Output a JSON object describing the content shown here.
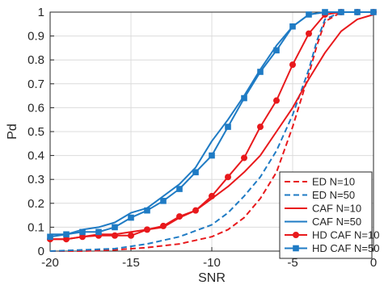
{
  "chart_data": {
    "type": "line",
    "title": "",
    "xlabel": "SNR",
    "ylabel": "Pd",
    "xlim": [
      -20,
      0
    ],
    "ylim": [
      0,
      1
    ],
    "xticks": [
      -20,
      -15,
      -10,
      -5,
      0
    ],
    "yticks": [
      0,
      0.1,
      0.2,
      0.3,
      0.4,
      0.5,
      0.6,
      0.7,
      0.8,
      0.9,
      1
    ],
    "grid": true,
    "legend_position": "bottom-right",
    "series": [
      {
        "name": "ED  N=10",
        "color": "#e8191c",
        "dash": "dashed",
        "marker": "none",
        "x": [
          -20,
          -18,
          -16,
          -14,
          -12,
          -10,
          -9,
          -8,
          -7,
          -6,
          -5,
          -4,
          -3.5,
          -3,
          -2,
          0
        ],
        "y": [
          0.0,
          0.0,
          0.005,
          0.015,
          0.03,
          0.06,
          0.09,
          0.14,
          0.22,
          0.33,
          0.52,
          0.74,
          0.86,
          0.96,
          1.0,
          1.0
        ]
      },
      {
        "name": "ED  N=50",
        "color": "#1f7bc4",
        "dash": "dashed",
        "marker": "none",
        "x": [
          -20,
          -18,
          -16,
          -14,
          -12,
          -10,
          -9,
          -8,
          -7,
          -6,
          -5,
          -4,
          -3.5,
          -3,
          -2,
          0
        ],
        "y": [
          0.0,
          0.005,
          0.01,
          0.03,
          0.06,
          0.11,
          0.16,
          0.23,
          0.31,
          0.42,
          0.57,
          0.76,
          0.88,
          0.97,
          1.0,
          1.0
        ]
      },
      {
        "name": "CAF  N=10",
        "color": "#e8191c",
        "dash": "solid",
        "marker": "none",
        "x": [
          -20,
          -19,
          -18,
          -17,
          -16,
          -15,
          -14,
          -13,
          -12,
          -11,
          -10,
          -9,
          -8,
          -7,
          -6,
          -5,
          -4,
          -3,
          -2,
          -1,
          0
        ],
        "y": [
          0.05,
          0.05,
          0.06,
          0.07,
          0.07,
          0.08,
          0.09,
          0.1,
          0.14,
          0.17,
          0.22,
          0.27,
          0.33,
          0.4,
          0.5,
          0.6,
          0.72,
          0.83,
          0.92,
          0.97,
          0.99
        ]
      },
      {
        "name": "CAF  N=50",
        "color": "#1f7bc4",
        "dash": "solid",
        "marker": "none",
        "x": [
          -20,
          -19,
          -18,
          -17,
          -16,
          -15,
          -14,
          -13,
          -12,
          -11,
          -10,
          -9,
          -8,
          -7,
          -6,
          -5,
          -4,
          -3,
          -2,
          -1,
          0
        ],
        "y": [
          0.07,
          0.07,
          0.09,
          0.1,
          0.12,
          0.16,
          0.18,
          0.23,
          0.28,
          0.35,
          0.46,
          0.55,
          0.65,
          0.76,
          0.86,
          0.94,
          0.99,
          1.0,
          1.0,
          1.0,
          1.0
        ]
      },
      {
        "name": "HD CAF  N=10",
        "color": "#e8191c",
        "dash": "solid",
        "marker": "circle",
        "x": [
          -20,
          -19,
          -18,
          -17,
          -16,
          -15,
          -14,
          -13,
          -12,
          -11,
          -10,
          -9,
          -8,
          -7,
          -6,
          -5,
          -4,
          -3,
          -2,
          -1,
          0
        ],
        "y": [
          0.05,
          0.05,
          0.06,
          0.065,
          0.065,
          0.065,
          0.09,
          0.105,
          0.145,
          0.17,
          0.23,
          0.31,
          0.39,
          0.52,
          0.63,
          0.78,
          0.91,
          0.99,
          1.0,
          1.0,
          1.0
        ]
      },
      {
        "name": "HD CAF  N=50",
        "color": "#1f7bc4",
        "dash": "solid",
        "marker": "square",
        "x": [
          -20,
          -19,
          -18,
          -17,
          -16,
          -15,
          -14,
          -13,
          -12,
          -11,
          -10,
          -9,
          -8,
          -7,
          -6,
          -5,
          -4,
          -3,
          -2,
          -1,
          0
        ],
        "y": [
          0.06,
          0.07,
          0.08,
          0.08,
          0.1,
          0.14,
          0.17,
          0.21,
          0.26,
          0.33,
          0.4,
          0.52,
          0.64,
          0.75,
          0.84,
          0.94,
          0.99,
          1.0,
          1.0,
          1.0,
          1.0
        ]
      }
    ]
  }
}
